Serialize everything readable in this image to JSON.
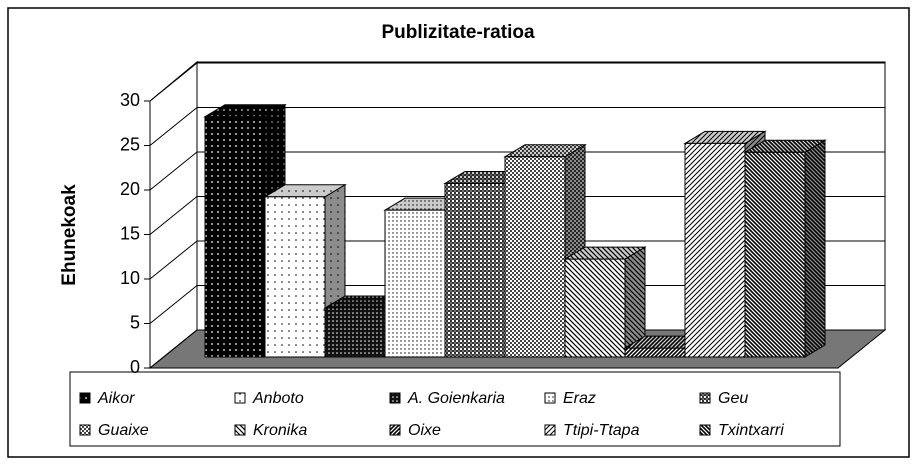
{
  "chart_data": {
    "type": "bar3d",
    "title": "Publizitate-ratioa",
    "y_label": "Ehunekoak",
    "categories": [
      "Aikor",
      "Anboto",
      "A. Goienkaria",
      "Eraz",
      "Geu",
      "Guaixe",
      "Kronika",
      "Oixe",
      "Ttipi-Ttapa",
      "Txintxarri"
    ],
    "values": [
      27,
      18,
      5.5,
      16.5,
      19.5,
      22.5,
      11,
      1,
      24,
      23
    ],
    "ylim": [
      0,
      30
    ],
    "yticks": [
      0,
      5,
      10,
      15,
      20,
      25,
      30
    ],
    "grid": true
  }
}
